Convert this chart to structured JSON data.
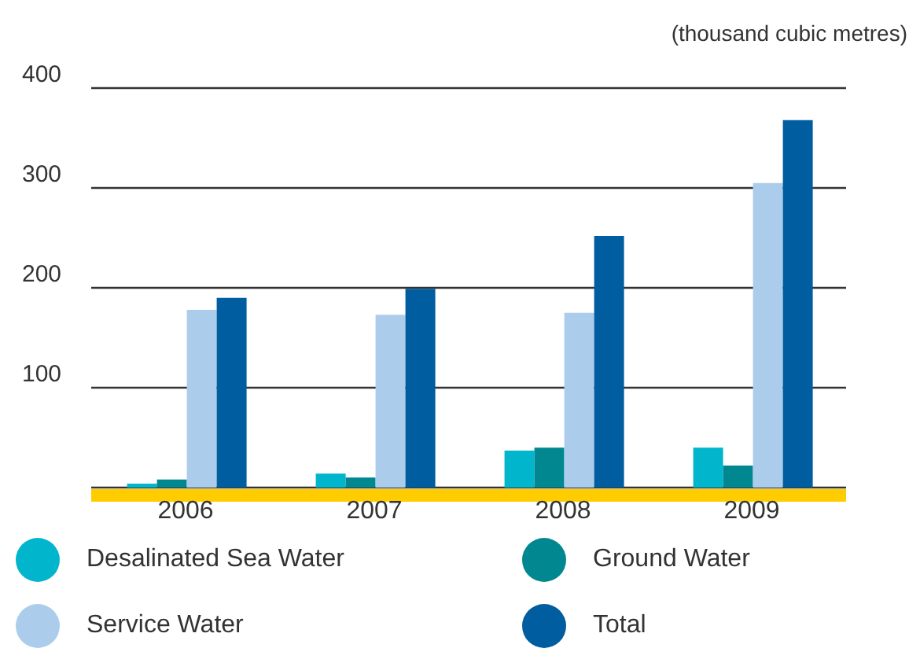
{
  "chart_data": {
    "type": "bar",
    "ylabel": "(thousand cubic metres)",
    "categories": [
      "2006",
      "2007",
      "2008",
      "2009"
    ],
    "series": [
      {
        "name": "Desalinated Sea Water",
        "color": "#00b5cc",
        "values": [
          4,
          14,
          37,
          40
        ]
      },
      {
        "name": "Ground Water",
        "color": "#00878f",
        "values": [
          8,
          10,
          40,
          22
        ]
      },
      {
        "name": "Service Water",
        "color": "#abcdeb",
        "values": [
          178,
          173,
          175,
          305
        ]
      },
      {
        "name": "Total",
        "color": "#005d9f",
        "values": [
          190,
          199,
          252,
          368
        ]
      }
    ],
    "ylim": [
      0,
      400
    ],
    "yticks": [
      100,
      200,
      300,
      400
    ],
    "grid": "y",
    "legend": "bottom"
  }
}
